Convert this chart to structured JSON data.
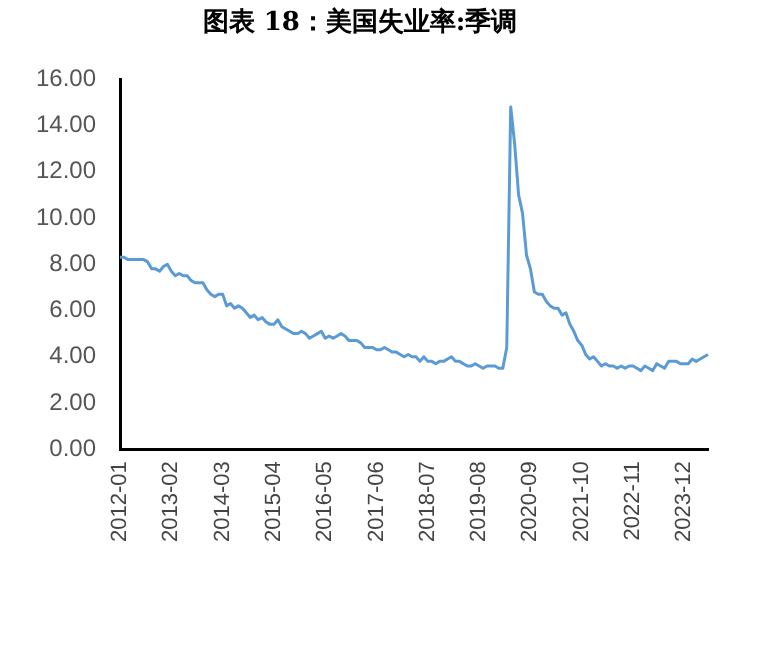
{
  "chart_data": {
    "type": "line",
    "title": "图表 18：美国失业率:季调",
    "categories": [
      "2012-01",
      null,
      null,
      null,
      null,
      null,
      null,
      null,
      null,
      null,
      null,
      null,
      null,
      "2013-02",
      null,
      null,
      null,
      null,
      null,
      null,
      null,
      null,
      null,
      null,
      null,
      null,
      "2014-03",
      null,
      null,
      null,
      null,
      null,
      null,
      null,
      null,
      null,
      null,
      null,
      null,
      "2015-04",
      null,
      null,
      null,
      null,
      null,
      null,
      null,
      null,
      null,
      null,
      null,
      null,
      "2016-05",
      null,
      null,
      null,
      null,
      null,
      null,
      null,
      null,
      null,
      null,
      null,
      null,
      "2017-06",
      null,
      null,
      null,
      null,
      null,
      null,
      null,
      null,
      null,
      null,
      null,
      null,
      "2018-07",
      null,
      null,
      null,
      null,
      null,
      null,
      null,
      null,
      null,
      null,
      null,
      null,
      "2019-08",
      null,
      null,
      null,
      null,
      null,
      null,
      null,
      null,
      null,
      null,
      null,
      null,
      "2020-09",
      null,
      null,
      null,
      null,
      null,
      null,
      null,
      null,
      null,
      null,
      null,
      null,
      "2021-10",
      null,
      null,
      null,
      null,
      null,
      null,
      null,
      null,
      null,
      null,
      null,
      null,
      "2022-11",
      null,
      null,
      null,
      null,
      null,
      null,
      null,
      null,
      null,
      null,
      null,
      null,
      "2023-12",
      null,
      null,
      null,
      null,
      null,
      null
    ],
    "series": [
      {
        "color": "#5b9bd5",
        "values": [
          8.3,
          8.3,
          8.2,
          8.2,
          8.2,
          8.2,
          8.2,
          8.1,
          7.8,
          7.8,
          7.7,
          7.9,
          8.0,
          7.7,
          7.5,
          7.6,
          7.5,
          7.5,
          7.3,
          7.2,
          7.2,
          7.2,
          6.9,
          6.7,
          6.6,
          6.7,
          6.7,
          6.2,
          6.3,
          6.1,
          6.2,
          6.1,
          5.9,
          5.7,
          5.8,
          5.6,
          5.7,
          5.5,
          5.4,
          5.4,
          5.6,
          5.3,
          5.2,
          5.1,
          5.0,
          5.0,
          5.1,
          5.0,
          4.8,
          4.9,
          5.0,
          5.1,
          4.8,
          4.9,
          4.8,
          4.9,
          5.0,
          4.9,
          4.7,
          4.7,
          4.7,
          4.6,
          4.4,
          4.4,
          4.4,
          4.3,
          4.3,
          4.4,
          4.3,
          4.2,
          4.2,
          4.1,
          4.0,
          4.1,
          4.0,
          4.0,
          3.8,
          4.0,
          3.8,
          3.8,
          3.7,
          3.8,
          3.8,
          3.9,
          4.0,
          3.8,
          3.8,
          3.7,
          3.6,
          3.6,
          3.7,
          3.6,
          3.5,
          3.6,
          3.6,
          3.6,
          3.5,
          3.5,
          4.4,
          14.8,
          13.2,
          11.0,
          10.2,
          8.4,
          7.8,
          6.8,
          6.7,
          6.7,
          6.4,
          6.2,
          6.1,
          6.1,
          5.8,
          5.9,
          5.4,
          5.1,
          4.7,
          4.5,
          4.1,
          3.9,
          4.0,
          3.8,
          3.6,
          3.7,
          3.6,
          3.6,
          3.5,
          3.6,
          3.5,
          3.6,
          3.6,
          3.5,
          3.4,
          3.6,
          3.5,
          3.4,
          3.7,
          3.6,
          3.5,
          3.8,
          3.8,
          3.8,
          3.7,
          3.7,
          3.7,
          3.9,
          3.8,
          3.9,
          4.0,
          4.1
        ]
      }
    ],
    "ylim": [
      0,
      16
    ],
    "yticks": [
      {
        "value": 0,
        "label": "0.00"
      },
      {
        "value": 2,
        "label": "2.00"
      },
      {
        "value": 4,
        "label": "4.00"
      },
      {
        "value": 6,
        "label": "6.00"
      },
      {
        "value": 8,
        "label": "8.00"
      },
      {
        "value": 10,
        "label": "10.00"
      },
      {
        "value": 12,
        "label": "12.00"
      },
      {
        "value": 14,
        "label": "14.00"
      },
      {
        "value": 16,
        "label": "16.00"
      }
    ],
    "grid": false,
    "legend": false,
    "marker": "none",
    "line_style": "solid"
  }
}
